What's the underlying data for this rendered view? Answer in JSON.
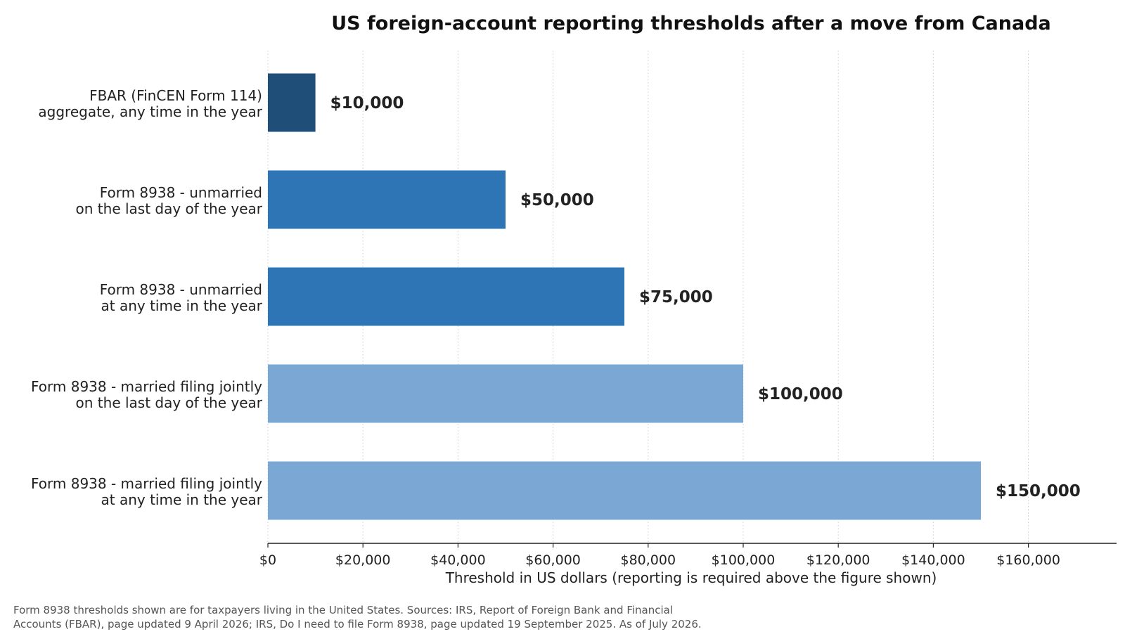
{
  "chart_data": {
    "type": "bar",
    "orientation": "horizontal",
    "title": "US foreign-account reporting thresholds after a move from Canada",
    "xlabel": "Threshold in US dollars (reporting is required above the figure shown)",
    "ylabel": "",
    "xlim": [
      0,
      178000
    ],
    "xticks": [
      0,
      20000,
      40000,
      60000,
      80000,
      100000,
      120000,
      140000,
      160000
    ],
    "xtick_labels": [
      "$0",
      "$20,000",
      "$40,000",
      "$60,000",
      "$80,000",
      "$100,000",
      "$120,000",
      "$140,000",
      "$160,000"
    ],
    "grid": "vertical dotted",
    "categories": [
      [
        "FBAR (FinCEN Form 114)",
        "aggregate, any time in the year"
      ],
      [
        "Form 8938 - unmarried",
        "on the last day of the year"
      ],
      [
        "Form 8938 - unmarried",
        "at any time in the year"
      ],
      [
        "Form 8938 - married filing jointly",
        "on the last day of the year"
      ],
      [
        "Form 8938 - married filing jointly",
        "at any time in the year"
      ]
    ],
    "values": [
      10000,
      50000,
      75000,
      100000,
      150000
    ],
    "value_labels": [
      "$10,000",
      "$50,000",
      "$75,000",
      "$100,000",
      "$150,000"
    ],
    "colors": [
      "#1f4e79",
      "#2e75b6",
      "#2e75b6",
      "#7ba7d4",
      "#7ba7d4"
    ]
  },
  "footnote": {
    "line1": "Form 8938 thresholds shown are for taxpayers living in the United States. Sources: IRS, Report of Foreign Bank and Financial",
    "line2": "Accounts (FBAR), page updated 9 April 2026; IRS, Do I need to file Form 8938, page updated 19 September 2025. As of July 2026."
  }
}
